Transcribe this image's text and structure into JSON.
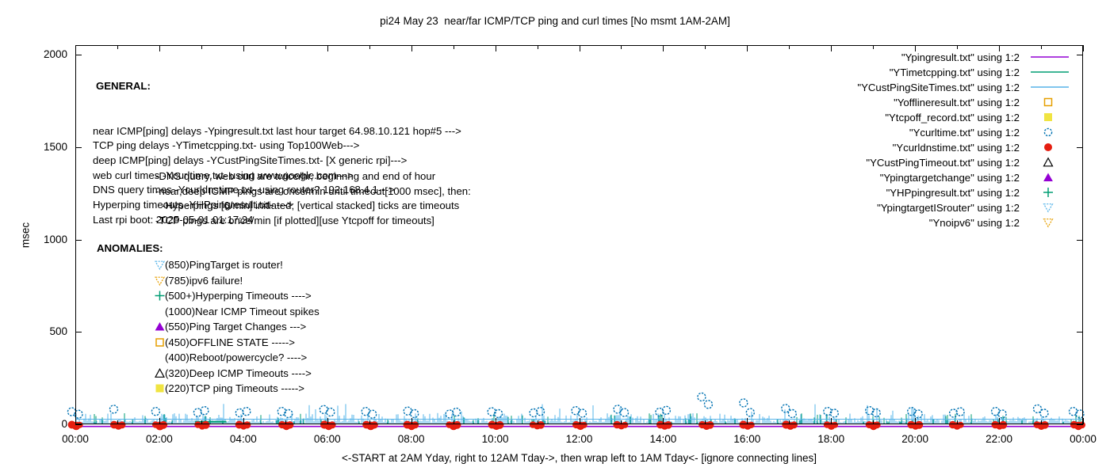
{
  "title": "pi24 May 23  near/far ICMP/TCP ping and curl times [No msmt 1AM-2AM]",
  "ylabel": "msec",
  "caption": "<-START at 2AM Yday, right to 12AM Tday->, then wrap left to 1AM Tday<- [ignore connecting lines]",
  "general": {
    "heading": "GENERAL:",
    "lines": [
      "near ICMP[ping] delays -Ypingresult.txt last hour target 64.98.10.121 hop#5 --->",
      "TCP ping delays -YTimetcpping.txt- using Top100Web--->",
      "deep ICMP[ping] delays -YCustPingSiteTimes.txt- [X generic rpi]--->",
      "web curl times -Ycurltime.txt- using www.google.com--->",
      "DNS query times -Ycurldnstime.txt- using router? 192.168.4.1--->",
      "Hyperping timeouts -YHPpingresult.txt- --->",
      "Last rpi boot: 2025-05-01 01:17:24"
    ],
    "notes": [
      {
        "text": "-DNS query, web curl are twice/hr, beginnng and end of hour",
        "indent": 0
      },
      {
        "text": "-near,deep ICMP pings are once/min until timeout[1000 msec], then:",
        "indent": 0
      },
      {
        "text": "-Hyperpings [6/min] initiated; [vertical stacked] ticks are timeouts",
        "indent": 8
      },
      {
        "text": "-TCP pings are once/min [if plotted][use Ytcpoff for timeouts]",
        "indent": 0
      }
    ]
  },
  "anomalies": {
    "heading": "ANOMALIES:",
    "items": [
      {
        "marker": "open-triangle-down",
        "color": "#56b4e9",
        "text": "(850)PingTarget is router!"
      },
      {
        "marker": "open-triangle-down",
        "color": "#e69f00",
        "text": "(785)ipv6 failure!"
      },
      {
        "marker": "plus",
        "color": "#009e73",
        "text": "(500+)Hyperping Timeouts ---->"
      },
      {
        "marker": "none",
        "color": "",
        "text": "(1000)Near ICMP Timeout spikes"
      },
      {
        "marker": "filled-triangle-up",
        "color": "#9400d3",
        "text": "(550)Ping Target Changes --->"
      },
      {
        "marker": "open-square",
        "color": "#e69f00",
        "text": "(450)OFFLINE STATE ----->"
      },
      {
        "marker": "none",
        "color": "",
        "text": "(400)Reboot/powercycle? ---->"
      },
      {
        "marker": "open-triangle-up",
        "color": "#000000",
        "text": "(320)Deep ICMP Timeouts ---->"
      },
      {
        "marker": "filled-square",
        "color": "#f0e442",
        "text": "(220)TCP ping Timeouts ----->"
      }
    ]
  },
  "legend": {
    "items": [
      {
        "label": "\"Ypingresult.txt\" using 1:2",
        "marker": "line",
        "color": "#9400d3"
      },
      {
        "label": "\"YTimetcpping.txt\" using 1:2",
        "marker": "line",
        "color": "#009e73"
      },
      {
        "label": "\"YCustPingSiteTimes.txt\" using 1:2",
        "marker": "line",
        "color": "#56b4e9"
      },
      {
        "label": "\"Yofflineresult.txt\" using 1:2",
        "marker": "open-square",
        "color": "#e69f00"
      },
      {
        "label": "\"Ytcpoff_record.txt\" using 1:2",
        "marker": "filled-square",
        "color": "#f0e442"
      },
      {
        "label": "\"Ycurltime.txt\" using 1:2",
        "marker": "open-circle",
        "color": "#0072b2"
      },
      {
        "label": "\"Ycurldnstime.txt\" using 1:2",
        "marker": "filled-circle",
        "color": "#e51e10"
      },
      {
        "label": "\"YCustPingTimeout.txt\" using 1:2",
        "marker": "open-triangle-up",
        "color": "#000000"
      },
      {
        "label": "\"Ypingtargetchange\" using 1:2",
        "marker": "filled-triangle-up",
        "color": "#9400d3"
      },
      {
        "label": "\"YHPpingresult.txt\" using 1:2",
        "marker": "plus",
        "color": "#009e73"
      },
      {
        "label": "\"YpingtargetISrouter\" using 1:2",
        "marker": "open-triangle-down",
        "color": "#56b4e9"
      },
      {
        "label": "\"Ynoipv6\" using 1:2",
        "marker": "open-triangle-down",
        "color": "#e69f00"
      }
    ]
  },
  "chart_data": {
    "type": "line",
    "title": "pi24 May 23  near/far ICMP/TCP ping and curl times [No msmt 1AM-2AM]",
    "xlabel": "",
    "ylabel": "msec",
    "ylim": [
      0,
      2050
    ],
    "xlim_hours": [
      0,
      24
    ],
    "grid": false,
    "legend_position": "top-right",
    "y_ticks": [
      {
        "value": 0,
        "label": "0"
      },
      {
        "value": 500,
        "label": "500"
      },
      {
        "value": 1000,
        "label": "1000"
      },
      {
        "value": 1500,
        "label": "1500"
      },
      {
        "value": 2000,
        "label": "2000"
      }
    ],
    "x_ticks": [
      {
        "hour": 0,
        "label": "00:00"
      },
      {
        "hour": 2,
        "label": "02:00"
      },
      {
        "hour": 4,
        "label": "04:00"
      },
      {
        "hour": 6,
        "label": "06:00"
      },
      {
        "hour": 8,
        "label": "08:00"
      },
      {
        "hour": 10,
        "label": "10:00"
      },
      {
        "hour": 12,
        "label": "12:00"
      },
      {
        "hour": 14,
        "label": "14:00"
      },
      {
        "hour": 16,
        "label": "16:00"
      },
      {
        "hour": 18,
        "label": "18:00"
      },
      {
        "hour": 20,
        "label": "20:00"
      },
      {
        "hour": 22,
        "label": "22:00"
      },
      {
        "hour": 24,
        "label": "00:00"
      }
    ],
    "colors": {
      "near_icmp": "#9400d3",
      "tcp_ping": "#009e73",
      "deep_icmp": "#56b4e9",
      "web_curl": "#0072b2",
      "dns_query": "#e51e10"
    },
    "baselines": {
      "near_icmp_flat_msec": 0,
      "wrap_connect_line_msec": 28,
      "tcp_ping_segment": {
        "start_hour": 2.85,
        "end_hour": 3.6,
        "msec": 14
      }
    },
    "deep_icmp_noise": {
      "typical_range_msec": [
        0,
        50
      ],
      "occasional_peak_msec": 110
    },
    "tcp_ping_noise": {
      "typical_range_msec": [
        0,
        60
      ]
    },
    "dns_query_points": {
      "hours": [
        0,
        1,
        2,
        3,
        4,
        5,
        6,
        7,
        8,
        9,
        10,
        11,
        12,
        13,
        14,
        15,
        16,
        17,
        18,
        19,
        20,
        21,
        22,
        23,
        24
      ],
      "msec": 0
    },
    "web_curl_pairs": [
      {
        "hour": 0,
        "values": [
          68,
          55
        ]
      },
      {
        "hour": 1,
        "values": [
          82
        ]
      },
      {
        "hour": 2,
        "values": [
          70
        ]
      },
      {
        "hour": 3,
        "values": [
          64,
          74
        ]
      },
      {
        "hour": 4,
        "values": [
          62,
          70
        ]
      },
      {
        "hour": 5,
        "values": [
          70,
          58
        ]
      },
      {
        "hour": 6,
        "values": [
          80,
          66
        ]
      },
      {
        "hour": 7,
        "values": [
          70,
          55
        ]
      },
      {
        "hour": 8,
        "values": [
          72,
          58
        ]
      },
      {
        "hour": 9,
        "values": [
          56,
          66
        ]
      },
      {
        "hour": 10,
        "values": [
          68,
          58
        ]
      },
      {
        "hour": 11,
        "values": [
          62,
          70
        ]
      },
      {
        "hour": 12,
        "values": [
          74,
          60
        ]
      },
      {
        "hour": 13,
        "values": [
          82,
          64
        ]
      },
      {
        "hour": 14,
        "values": [
          66,
          76
        ]
      },
      {
        "hour": 15,
        "values": [
          148,
          108
        ]
      },
      {
        "hour": 16,
        "values": [
          116,
          64
        ]
      },
      {
        "hour": 17,
        "values": [
          86,
          58
        ]
      },
      {
        "hour": 18,
        "values": [
          70,
          60
        ]
      },
      {
        "hour": 19,
        "values": [
          74,
          62
        ]
      },
      {
        "hour": 20,
        "values": [
          70,
          56
        ]
      },
      {
        "hour": 21,
        "values": [
          60,
          68
        ]
      },
      {
        "hour": 22,
        "values": [
          70,
          56
        ]
      },
      {
        "hour": 23,
        "values": [
          84,
          60
        ]
      },
      {
        "hour": 24,
        "values": [
          70,
          56
        ]
      }
    ]
  }
}
